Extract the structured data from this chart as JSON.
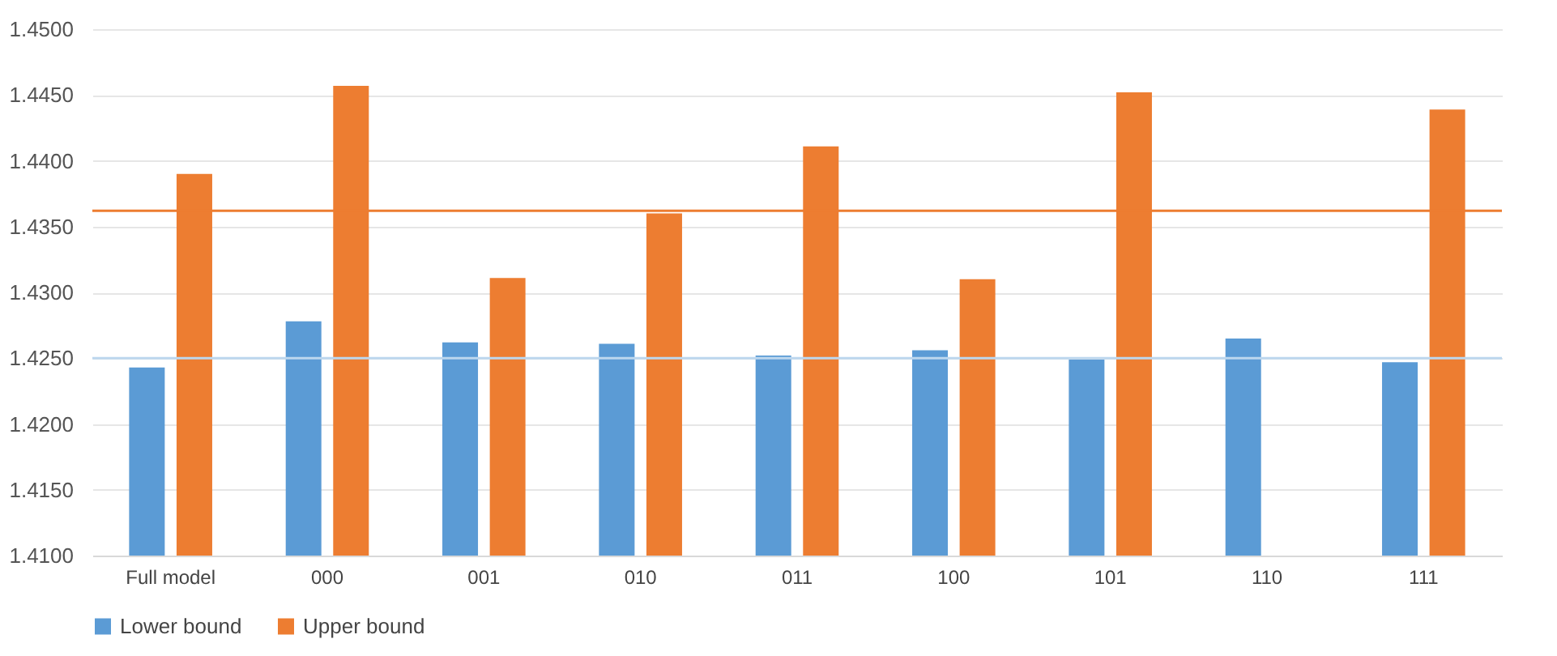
{
  "chart_data": {
    "type": "bar",
    "categories": [
      "Full model",
      "000",
      "001",
      "010",
      "011",
      "100",
      "101",
      "110",
      "111"
    ],
    "series": [
      {
        "name": "Lower bound",
        "color": "#5b9bd5",
        "values": [
          1.4243,
          1.4278,
          1.4262,
          1.4261,
          1.4252,
          1.4256,
          1.4249,
          1.4265,
          1.4247
        ]
      },
      {
        "name": "Upper bound",
        "color": "#ed7d31",
        "values": [
          1.439,
          1.4457,
          1.4311,
          1.436,
          1.4411,
          1.431,
          1.4452,
          null,
          1.4439
        ]
      }
    ],
    "ylim": [
      1.41,
      1.45
    ],
    "yticks": [
      {
        "value": 1.41,
        "label": "1.4100"
      },
      {
        "value": 1.415,
        "label": "1.4150"
      },
      {
        "value": 1.42,
        "label": "1.4200"
      },
      {
        "value": 1.425,
        "label": "1.4250"
      },
      {
        "value": 1.43,
        "label": "1.4300"
      },
      {
        "value": 1.435,
        "label": "1.4350"
      },
      {
        "value": 1.44,
        "label": "1.4400"
      },
      {
        "value": 1.445,
        "label": "1.4450"
      },
      {
        "value": 1.45,
        "label": "1.4500"
      }
    ],
    "ref_lines": [
      {
        "axis": "y",
        "value": 1.4362,
        "color": "#ed7d31"
      },
      {
        "axis": "y",
        "value": 1.425,
        "color": "#bdd7ee"
      }
    ],
    "grid": "y",
    "legend": "bottom"
  }
}
